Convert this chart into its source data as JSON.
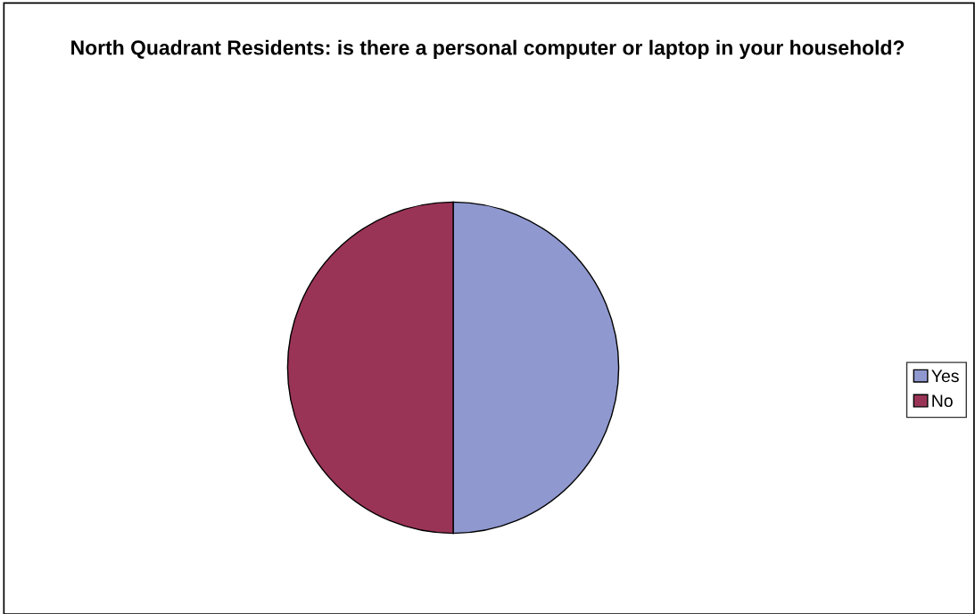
{
  "chart_data": {
    "type": "pie",
    "title": "North Quadrant Residents: is there a personal computer or laptop in your household?",
    "categories": [
      "Yes",
      "No"
    ],
    "values": [
      50,
      50
    ],
    "colors": [
      "#8f98cf",
      "#9a3457"
    ],
    "legend": "right"
  }
}
